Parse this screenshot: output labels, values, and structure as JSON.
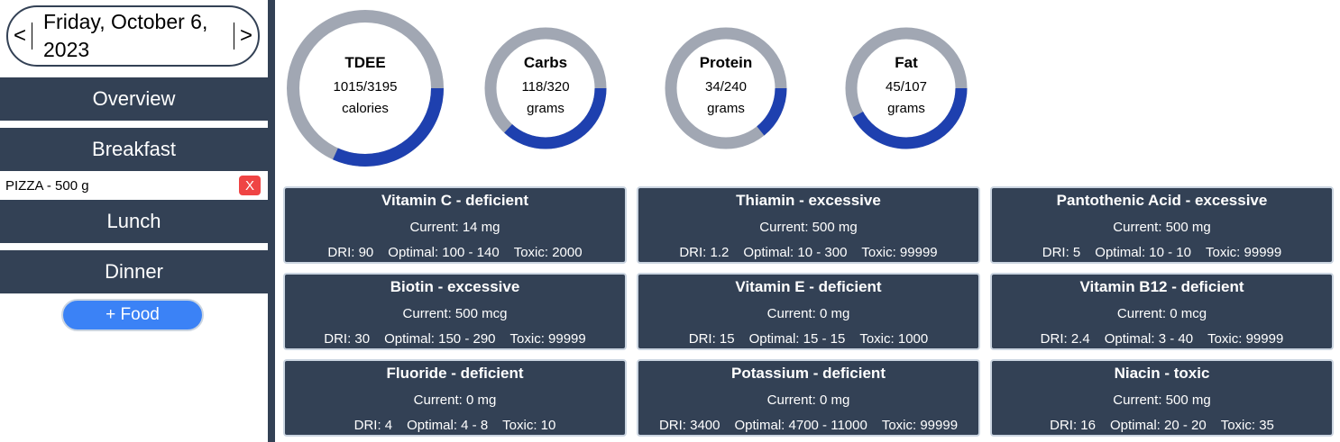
{
  "date_nav": {
    "prev": "<",
    "next": ">",
    "date": "Friday, October 6, 2023"
  },
  "sections": {
    "overview": "Overview",
    "breakfast": "Breakfast",
    "lunch": "Lunch",
    "dinner": "Dinner"
  },
  "breakfast_items": [
    {
      "label": "PIZZA - 500 g",
      "remove_label": "X"
    }
  ],
  "add_food_label": "+ Food",
  "colors": {
    "dark": "#334155",
    "ring_bg": "#a1a7b3",
    "ring_fg": "#1e40af",
    "accent": "#3b82f6",
    "danger": "#ef4444"
  },
  "rings": [
    {
      "title": "TDEE",
      "value": "1015/3195",
      "unit": "calories",
      "current": 1015,
      "target": 3195
    },
    {
      "title": "Carbs",
      "value": "118/320",
      "unit": "grams",
      "current": 118,
      "target": 320
    },
    {
      "title": "Protein",
      "value": "34/240",
      "unit": "grams",
      "current": 34,
      "target": 240
    },
    {
      "title": "Fat",
      "value": "45/107",
      "unit": "grams",
      "current": 45,
      "target": 107
    }
  ],
  "nutrients": [
    {
      "title": "Vitamin C - deficient",
      "current": "Current: 14 mg",
      "dri": "DRI: 90",
      "optimal": "Optimal: 100 - 140",
      "toxic": "Toxic: 2000"
    },
    {
      "title": "Thiamin - excessive",
      "current": "Current: 500 mg",
      "dri": "DRI: 1.2",
      "optimal": "Optimal: 10 - 300",
      "toxic": "Toxic: 99999"
    },
    {
      "title": "Pantothenic Acid - excessive",
      "current": "Current: 500 mg",
      "dri": "DRI: 5",
      "optimal": "Optimal: 10 - 10",
      "toxic": "Toxic: 99999"
    },
    {
      "title": "Biotin - excessive",
      "current": "Current: 500 mcg",
      "dri": "DRI: 30",
      "optimal": "Optimal: 150 - 290",
      "toxic": "Toxic: 99999"
    },
    {
      "title": "Vitamin E - deficient",
      "current": "Current: 0 mg",
      "dri": "DRI: 15",
      "optimal": "Optimal: 15 - 15",
      "toxic": "Toxic: 1000"
    },
    {
      "title": "Vitamin B12 - deficient",
      "current": "Current: 0 mcg",
      "dri": "DRI: 2.4",
      "optimal": "Optimal: 3 - 40",
      "toxic": "Toxic: 99999"
    },
    {
      "title": "Fluoride - deficient",
      "current": "Current: 0 mg",
      "dri": "DRI: 4",
      "optimal": "Optimal: 4 - 8",
      "toxic": "Toxic: 10"
    },
    {
      "title": "Potassium - deficient",
      "current": "Current: 0 mg",
      "dri": "DRI: 3400",
      "optimal": "Optimal: 4700 - 11000",
      "toxic": "Toxic: 99999"
    },
    {
      "title": "Niacin - toxic",
      "current": "Current: 500 mg",
      "dri": "DRI: 16",
      "optimal": "Optimal: 20 - 20",
      "toxic": "Toxic: 35"
    }
  ]
}
